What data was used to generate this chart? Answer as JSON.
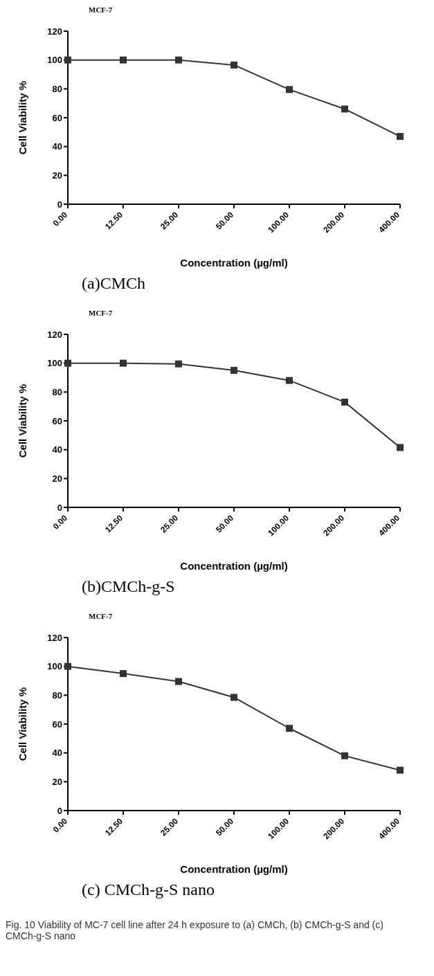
{
  "chart_data": [
    {
      "type": "line",
      "title": "MCF-7",
      "subtitle": "(a)CMCh",
      "xlabel": "Concentration (µg/ml)",
      "ylabel": "Cell Viability %",
      "categories": [
        "0.00",
        "12.50",
        "25.00",
        "50.00",
        "100.00",
        "200.00",
        "400.00"
      ],
      "series": [
        {
          "color": "#333333",
          "values": [
            100,
            100,
            100,
            96.5,
            79.5,
            66,
            47
          ]
        }
      ],
      "ylim": [
        0,
        120
      ],
      "yticks": [
        0,
        20,
        40,
        60,
        80,
        100,
        120
      ],
      "grid": false,
      "legend": false,
      "marker": "square",
      "line_style": "solid"
    },
    {
      "type": "line",
      "title": "MCF-7",
      "subtitle": "(b)CMCh-g-S",
      "xlabel": "Concentration (µg/ml)",
      "ylabel": "Cell Viability %",
      "categories": [
        "0.00",
        "12.50",
        "25.00",
        "50.00",
        "100.00",
        "200.00",
        "400.00"
      ],
      "series": [
        {
          "color": "#333333",
          "values": [
            100,
            100,
            99.5,
            95,
            88,
            73,
            41.5
          ]
        }
      ],
      "ylim": [
        0,
        120
      ],
      "yticks": [
        0,
        20,
        40,
        60,
        80,
        100,
        120
      ],
      "grid": false,
      "legend": false,
      "marker": "square",
      "line_style": "solid"
    },
    {
      "type": "line",
      "title": "MCF-7",
      "subtitle": "(c) CMCh-g-S nano",
      "xlabel": "Concentration (µg/ml)",
      "ylabel": "Cell Viability %",
      "categories": [
        "0.00",
        "12.50",
        "25.00",
        "50.00",
        "100.00",
        "200.00",
        "400.00"
      ],
      "series": [
        {
          "color": "#333333",
          "values": [
            100,
            95,
            89.5,
            78.5,
            57,
            38,
            28
          ]
        }
      ],
      "ylim": [
        0,
        120
      ],
      "yticks": [
        0,
        20,
        40,
        60,
        80,
        100,
        120
      ],
      "grid": false,
      "legend": false,
      "marker": "square",
      "line_style": "solid",
      "annotations": [
        "Fig. 10 Viability of MC-7 cell line after 24 h exposure to (a) CMCh, (b) CMCh-g-S and (c) CMCh-g-S nano"
      ]
    }
  ]
}
